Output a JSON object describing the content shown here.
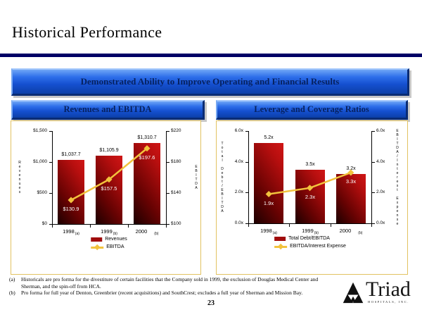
{
  "page": {
    "title": "Historical Performance",
    "banner": "Demonstrated Ability to Improve Operating and Financial Results",
    "page_number": "23",
    "footnotes": [
      {
        "marker": "(a)",
        "text": "Historicals are pro forma for the divestiture of certain facilities that the Company sold in 1999, the exclusion of Douglas Medical Center and Sherman, and the spin-off from HCA."
      },
      {
        "marker": "(b)",
        "text": "Pro forma for full year of Denton, Greenbrier (recent acquisitions) and SouthCrest; excludes a full year of Sherman and Mission Bay."
      }
    ],
    "logo": {
      "name": "Triad",
      "subtext": "HOSPITALS, INC."
    }
  },
  "colors": {
    "navy_rule": "#000066",
    "banner_blue": "#1E5FE8",
    "header_text": "#06215F",
    "bar_red_bright": "#C41212",
    "bar_red_dark": "#1C0000",
    "line": "#F2C33D",
    "panel_border": "#E2C261",
    "legend_red": "#A00C0C"
  },
  "chart_data": [
    {
      "type": "bar",
      "title": "Revenues and EBITDA",
      "categories": [
        "1998",
        "1999",
        "2000"
      ],
      "category_notes": [
        "(a)",
        "(b)",
        "(b)"
      ],
      "series": [
        {
          "name": "Revenues",
          "kind": "bar",
          "axis": "left",
          "values": [
            1037.7,
            1105.9,
            1310.7
          ],
          "labels": [
            "$1,037.7",
            "$1,105.9",
            "$1,310.7"
          ]
        },
        {
          "name": "EBITDA",
          "kind": "line",
          "axis": "right",
          "values": [
            130.9,
            157.5,
            197.6
          ],
          "labels": [
            "$130.9",
            "$157.5",
            "$197.6"
          ]
        }
      ],
      "left_axis": {
        "title": "Revenues",
        "min": 0,
        "max": 1500,
        "ticks": [
          "$0",
          "$500",
          "$1,000",
          "$1,500"
        ]
      },
      "right_axis": {
        "title": "EBITDA",
        "min": 100,
        "max": 220,
        "ticks": [
          "$100",
          "$140",
          "$180",
          "$220"
        ]
      },
      "legend": [
        "Revenues",
        "EBITDA"
      ],
      "legend_position": "bottom",
      "grid": false
    },
    {
      "type": "bar",
      "title": "Leverage and Coverage Ratios",
      "categories": [
        "1998",
        "1999",
        "2000"
      ],
      "category_notes": [
        "(a)",
        "(b)",
        "(b)"
      ],
      "series": [
        {
          "name": "Total Debt/EBITDA",
          "kind": "bar",
          "axis": "left",
          "values": [
            5.2,
            3.5,
            3.2
          ],
          "labels": [
            "5.2x",
            "3.5x",
            "3.2x"
          ]
        },
        {
          "name": "EBITDA/Interest Expense",
          "kind": "line",
          "axis": "right",
          "values": [
            1.9,
            2.3,
            3.3
          ],
          "labels": [
            "1.9x",
            "2.3x",
            "3.3x"
          ]
        }
      ],
      "left_axis": {
        "title": "Total Debt/EBITDA",
        "min": 0,
        "max": 6,
        "ticks": [
          "0.0x",
          "2.0x",
          "4.0x",
          "6.0x"
        ]
      },
      "right_axis": {
        "title": "EBITDA/Interest Expense",
        "min": 0,
        "max": 6,
        "ticks": [
          "0.0x",
          "2.0x",
          "4.0x",
          "6.0x"
        ]
      },
      "legend": [
        "Total Debt/EBITDA",
        "EBITDA/Interest Expense"
      ],
      "legend_position": "bottom",
      "grid": false
    }
  ]
}
